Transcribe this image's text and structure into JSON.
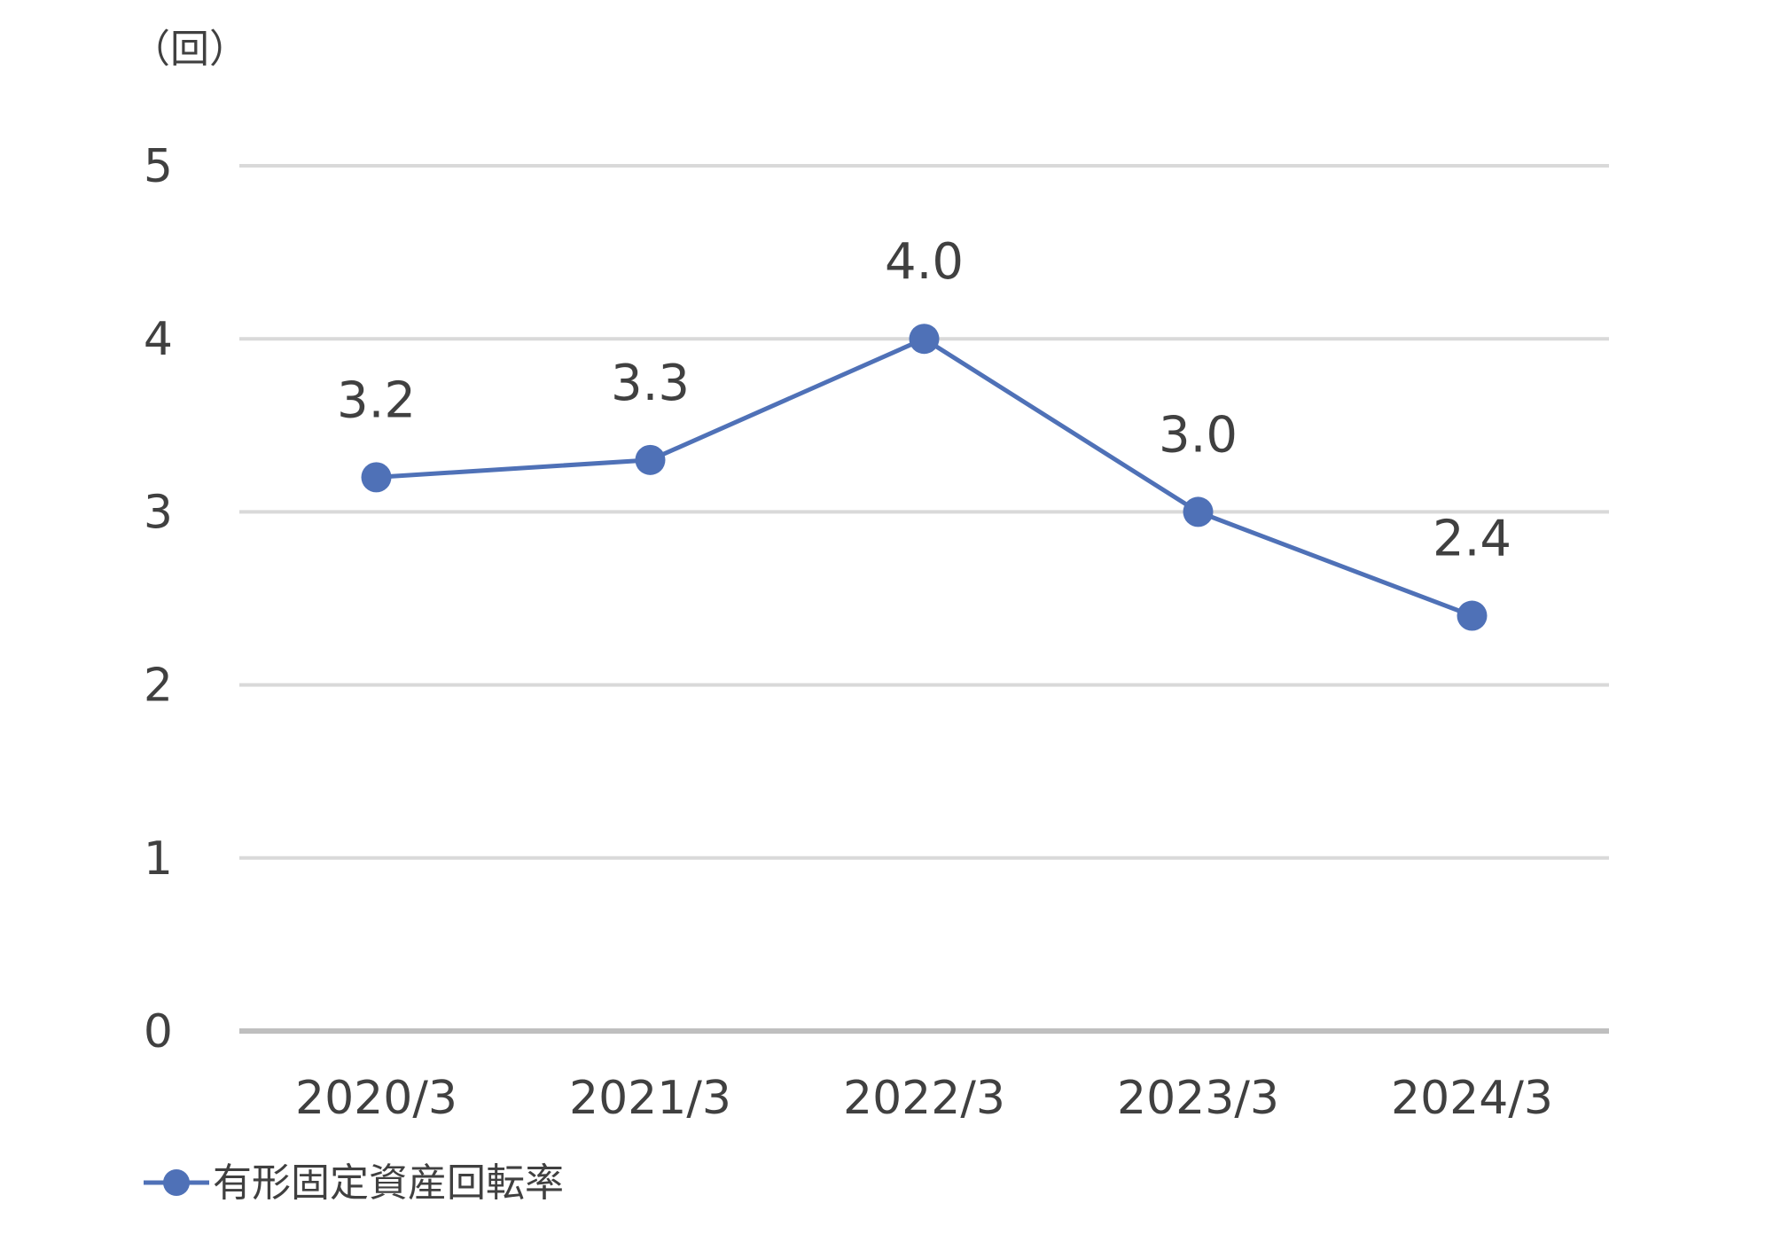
{
  "chart_data": {
    "type": "line",
    "unit_label": "（回）",
    "categories": [
      "2020/3",
      "2021/3",
      "2022/3",
      "2023/3",
      "2024/3"
    ],
    "series": [
      {
        "name": "有形固定資産回転率",
        "values": [
          3.2,
          3.3,
          4.0,
          3.0,
          2.4
        ],
        "data_labels": [
          "3.2",
          "3.3",
          "4.0",
          "3.0",
          "2.4"
        ],
        "color": "#4f71b7"
      }
    ],
    "ylim": [
      0,
      5
    ],
    "yticks": [
      "0",
      "1",
      "2",
      "3",
      "4",
      "5"
    ],
    "grid": true,
    "legend": "bottom-left",
    "colors": {
      "grid": "#d9d9d9",
      "axis": "#bfbfbf",
      "text": "#404040"
    }
  }
}
